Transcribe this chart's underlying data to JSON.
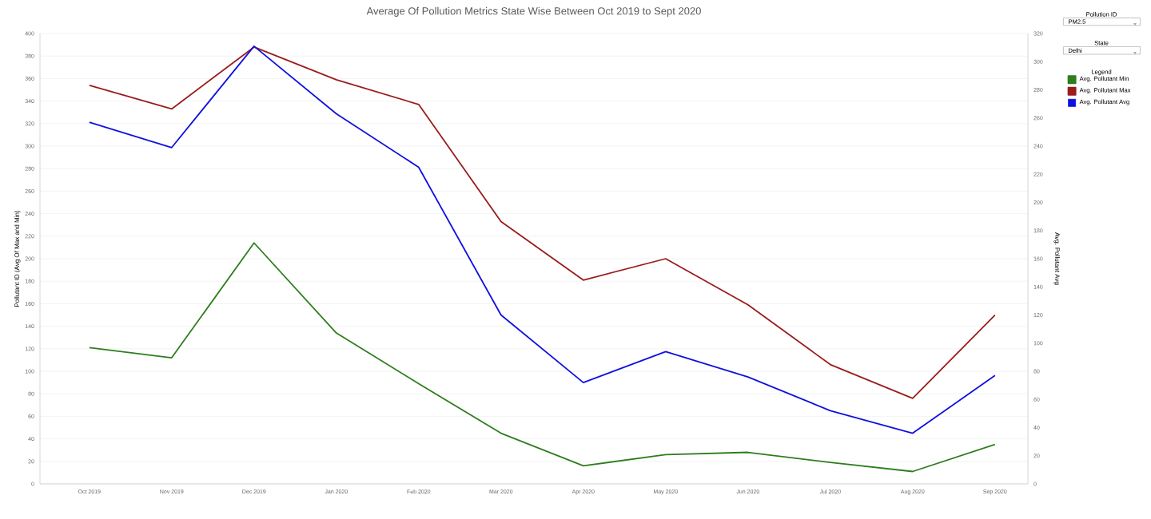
{
  "chart_data": {
    "type": "line",
    "title": "Average Of Pollution Metrics State Wise Between Oct 2019 to Sept 2020",
    "categories": [
      "Oct 2019",
      "Nov 2019",
      "Dec 2019",
      "Jan 2020",
      "Feb 2020",
      "Mar 2020",
      "Apr 2020",
      "May 2020",
      "Jun 2020",
      "Jul 2020",
      "Aug 2020",
      "Sep 2020"
    ],
    "series": [
      {
        "name": "Avg. Pollutant Min",
        "color": "#2e7d1e",
        "values": [
          121,
          112,
          214,
          134,
          89,
          45,
          16,
          26,
          28,
          19,
          11,
          35
        ]
      },
      {
        "name": "Avg. Pollutant Max",
        "color": "#9b1c1c",
        "values": [
          354,
          333,
          388,
          359,
          337,
          233,
          181,
          200,
          159,
          106,
          76,
          150
        ]
      },
      {
        "name": "Avg. Pollutant Avg",
        "color": "#1010e0",
        "axis": "y2",
        "values": [
          257,
          239,
          311,
          263,
          225,
          120,
          72,
          94,
          76,
          52,
          36,
          77
        ]
      }
    ],
    "ylabel": "Pollutant ID (Avg Of Max and Min)",
    "y2label": "Avg. Pollutant Avg",
    "ylim": [
      0,
      400
    ],
    "yticks": [
      0,
      20,
      40,
      60,
      80,
      100,
      120,
      140,
      160,
      180,
      200,
      220,
      240,
      260,
      280,
      300,
      320,
      340,
      360,
      380,
      400
    ],
    "y2lim": [
      0,
      320
    ],
    "y2ticks": [
      0,
      20,
      40,
      60,
      80,
      100,
      120,
      140,
      160,
      180,
      200,
      220,
      240,
      260,
      280,
      300,
      320
    ],
    "grid": "y",
    "legend": "top right",
    "legend_title": "Legend",
    "marker": "none",
    "line_style": "solid",
    "annotations": [
      "Pollution ID",
      "PM2.5",
      "State",
      "Delhi"
    ]
  }
}
